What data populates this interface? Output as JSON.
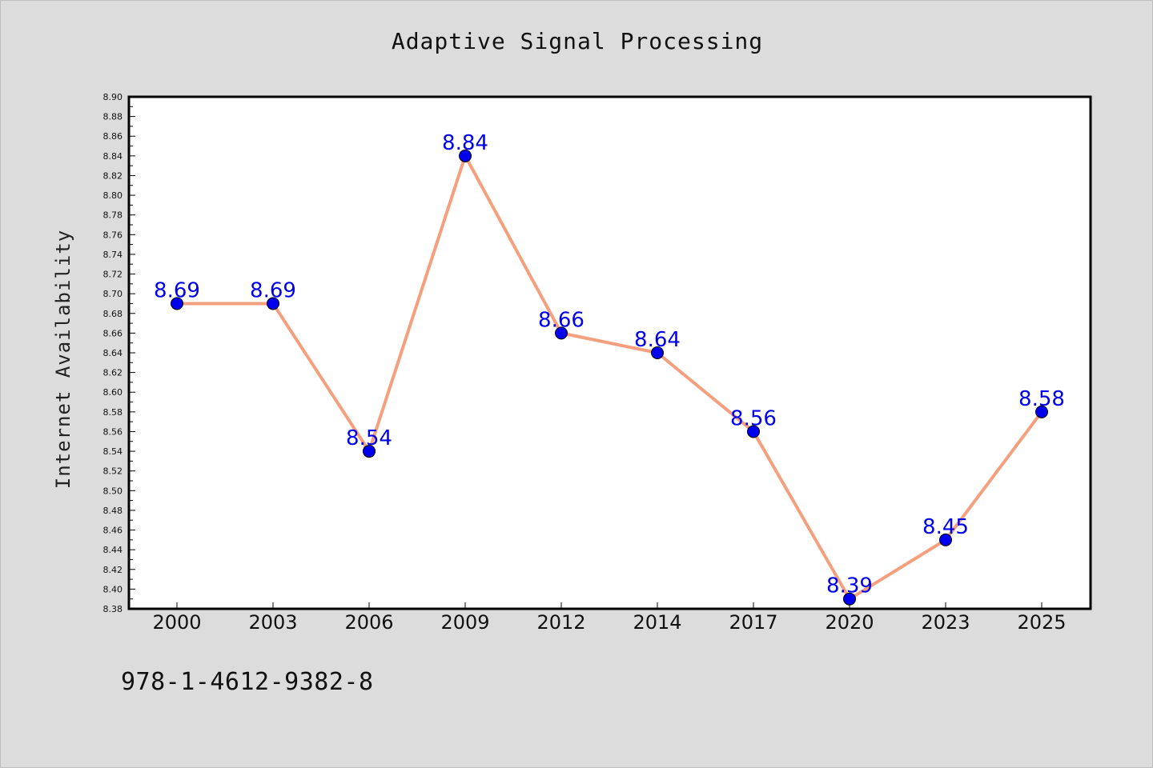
{
  "chart_data": {
    "type": "line",
    "title": "Adaptive Signal Processing",
    "xlabel": "",
    "ylabel": "Internet Availability",
    "categories": [
      "2000",
      "2003",
      "2006",
      "2009",
      "2012",
      "2014",
      "2017",
      "2020",
      "2023",
      "2025"
    ],
    "values": [
      8.69,
      8.69,
      8.54,
      8.84,
      8.66,
      8.64,
      8.56,
      8.39,
      8.45,
      8.58
    ],
    "ylim": [
      8.38,
      8.9
    ],
    "yticks": [
      8.38,
      8.4,
      8.42,
      8.44,
      8.46,
      8.48,
      8.5,
      8.52,
      8.54,
      8.56,
      8.58,
      8.6,
      8.62,
      8.64,
      8.66,
      8.68,
      8.7,
      8.72,
      8.74,
      8.76,
      8.78,
      8.8,
      8.82,
      8.84,
      8.86,
      8.88,
      8.9
    ],
    "grid": false,
    "line_color": "#f4a07f",
    "marker_color": "#0000ee",
    "label_color": "#0000ee"
  },
  "footer": {
    "isbn": "978-1-4612-9382-8"
  }
}
